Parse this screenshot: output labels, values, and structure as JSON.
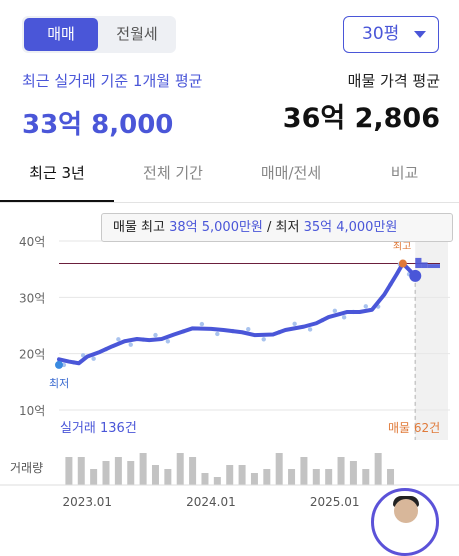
{
  "deal_toggle": {
    "active": "매매",
    "inactive": "전월세"
  },
  "size_select": {
    "value": "30평"
  },
  "summary": {
    "left_label": "최근 실거래 기준 1개월 평균",
    "left_value": "33억 8,000",
    "right_label": "매물 가격 평균",
    "right_value": "36억 2,806"
  },
  "tabs": [
    "최근 3년",
    "전체 기간",
    "매매/전세",
    "비교"
  ],
  "tooltip": {
    "prefix": "매물 최고 ",
    "max": "38억 5,000만원",
    "sep": " / 최저 ",
    "min": "35억 4,000만원"
  },
  "colors": {
    "accent": "#4a56d8",
    "listing": "#e07a3a",
    "reference_line": "#6b1f3c"
  },
  "chart_data": {
    "type": "line",
    "yaxis_ticks": [
      "40억",
      "30억",
      "20억",
      "10억"
    ],
    "y_tick_values": [
      40,
      30,
      20,
      10
    ],
    "ylim": [
      10,
      40
    ],
    "x_tick_labels": [
      "2023.01",
      "2024.01",
      "2025.01"
    ],
    "x_tick_values": [
      2023.0,
      2024.0,
      2025.0
    ],
    "xlim": [
      2022.77,
      2025.85
    ],
    "reference_line_value": 36,
    "min_label": "최저",
    "max_label": "최고",
    "trade_count_label": "실거래 136건",
    "listing_count_label": "매물 62건",
    "volume_label": "거래량",
    "series": [
      {
        "name": "실거래",
        "x": [
          2022.77,
          2022.85,
          2022.93,
          2023.0,
          2023.1,
          2023.2,
          2023.3,
          2023.4,
          2023.5,
          2023.6,
          2023.7,
          2023.85,
          2024.0,
          2024.1,
          2024.25,
          2024.35,
          2024.5,
          2024.6,
          2024.75,
          2024.85,
          2024.95,
          2025.05,
          2025.1,
          2025.2,
          2025.3,
          2025.4,
          2025.5,
          2025.55,
          2025.65
        ],
        "values": [
          19,
          18.6,
          18.3,
          19.5,
          20.3,
          21.3,
          22.2,
          22.6,
          22.4,
          22.6,
          23.4,
          24.5,
          24.4,
          24.2,
          23.8,
          23.3,
          23.4,
          24.2,
          24.8,
          25.4,
          26.5,
          27.1,
          27.4,
          27.4,
          27.8,
          30.5,
          34.1,
          36,
          33.8
        ]
      },
      {
        "name": "매물",
        "x": [
          2025.65,
          2025.7,
          2025.75,
          2025.85
        ],
        "values": [
          35.5,
          37,
          36.2,
          35.9
        ]
      }
    ],
    "min_point": {
      "x": 2022.77,
      "value": 18
    },
    "max_point": {
      "x": 2025.55,
      "value": 36
    },
    "current_point": {
      "x": 2025.65,
      "value": 33.8
    },
    "volume_x": [
      2022.85,
      2022.95,
      2023.05,
      2023.15,
      2023.25,
      2023.35,
      2023.45,
      2023.55,
      2023.65,
      2023.75,
      2023.85,
      2023.95,
      2024.05,
      2024.15,
      2024.25,
      2024.35,
      2024.45,
      2024.55,
      2024.65,
      2024.75,
      2024.85,
      2024.95,
      2025.05,
      2025.15,
      2025.25,
      2025.35,
      2025.45
    ],
    "volume_values": [
      7,
      7,
      4,
      6,
      7,
      6,
      8,
      5,
      4,
      8,
      7,
      3,
      2,
      5,
      5,
      3,
      4,
      8,
      4,
      7,
      4,
      4,
      7,
      6,
      4,
      8,
      4
    ]
  }
}
